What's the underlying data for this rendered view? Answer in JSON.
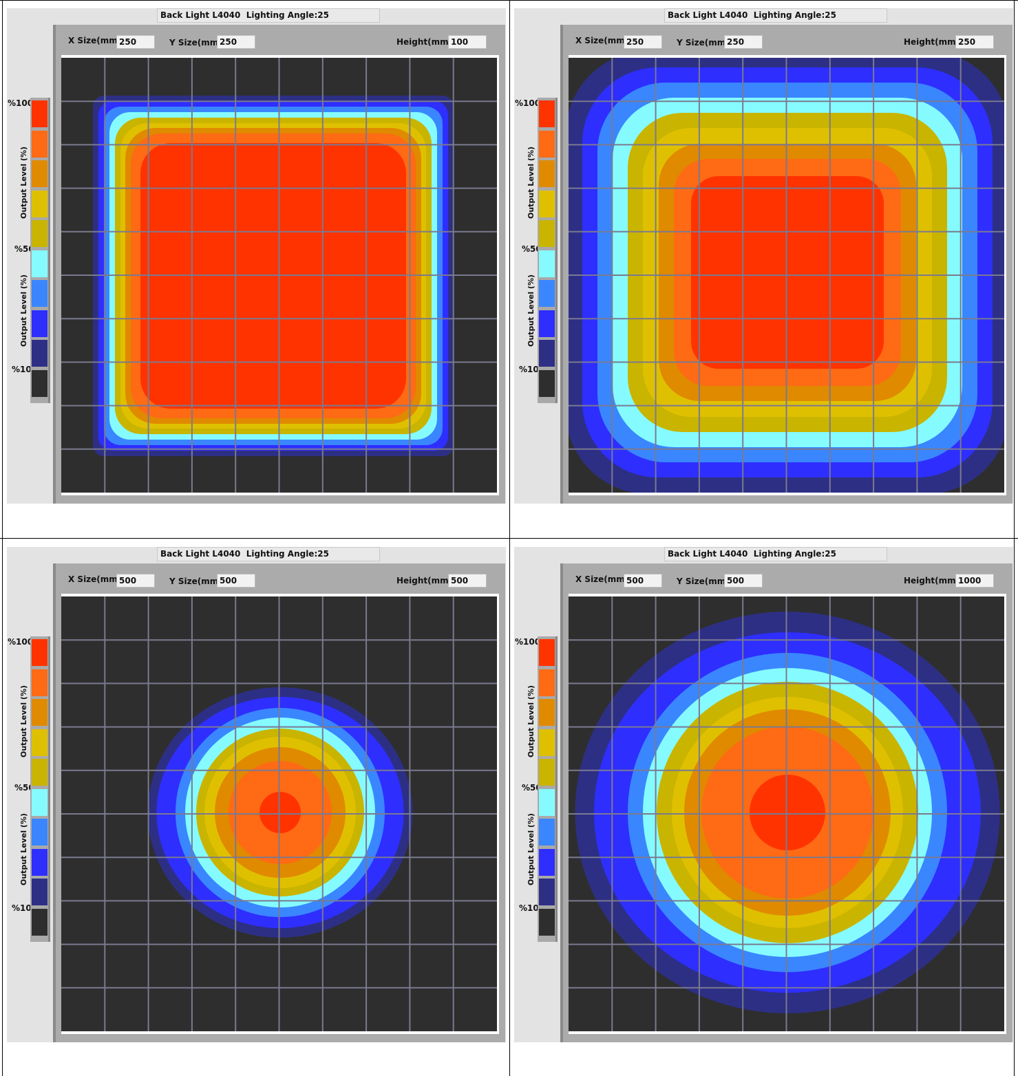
{
  "colors": {
    "level_100": "#ff3300",
    "level_90": "#ff6a14",
    "level_80": "#e08a00",
    "level_70": "#dfc000",
    "level_60": "#c9b400",
    "level_50": "#85fbff",
    "level_40": "#3a86ff",
    "level_30": "#2e2eff",
    "level_20": "#2d2f85",
    "level_10": "#2e2e2e",
    "grid": "#7a7a90"
  },
  "legend": {
    "pct_100": "%100",
    "pct_50": "%50",
    "pct_10": "%10",
    "axis_label": "Output Level (%)"
  },
  "panels": [
    {
      "title": "Back Light L4040  Lighting Angle:25",
      "x_size_label": "X Size(mm)",
      "x_size": "250",
      "y_size_label": "Y Size(mm)",
      "y_size": "250",
      "height_label": "Height(mm)",
      "height": "100",
      "shape": "square"
    },
    {
      "title": "Back Light L4040  Lighting Angle:25",
      "x_size_label": "X Size(mm)",
      "x_size": "250",
      "y_size_label": "Y Size(mm)",
      "y_size": "250",
      "height_label": "Height(mm)",
      "height": "250",
      "shape": "square"
    },
    {
      "title": "Back Light L4040  Lighting Angle:25",
      "x_size_label": "X Size(mm)",
      "x_size": "500",
      "y_size_label": "Y Size(mm)",
      "y_size": "500",
      "height_label": "Height(mm)",
      "height": "500",
      "shape": "circle"
    },
    {
      "title": "Back Light L4040  Lighting Angle:25",
      "x_size_label": "X Size(mm)",
      "x_size": "500",
      "y_size_label": "Y Size(mm)",
      "y_size": "500",
      "height_label": "Height(mm)",
      "height": "1000",
      "shape": "circle"
    }
  ]
}
